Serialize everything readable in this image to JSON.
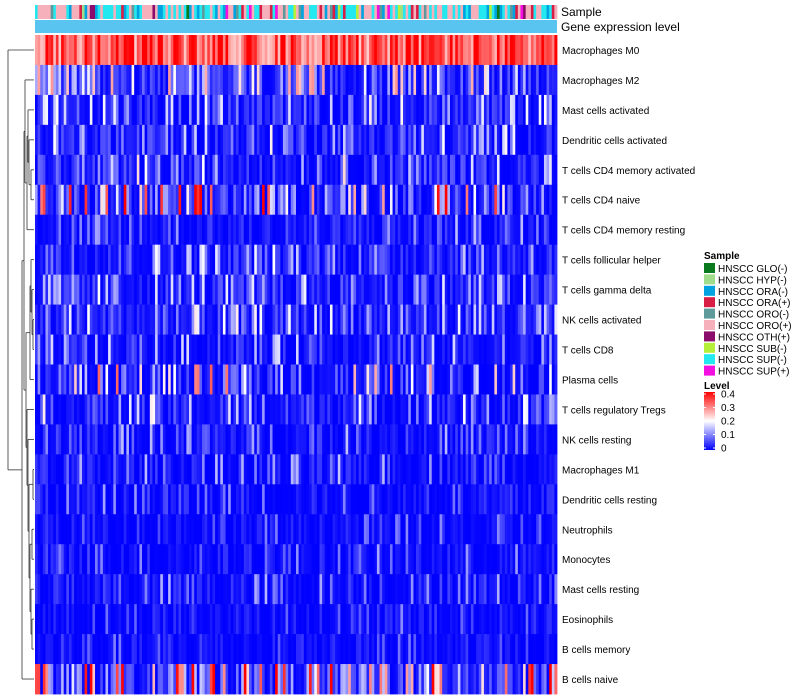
{
  "chart_data": {
    "type": "heatmap",
    "title": "",
    "annotation_tracks": [
      "Sample",
      "Gene expression level"
    ],
    "rows": [
      "Macrophages M0",
      "Macrophages M2",
      "Mast cells activated",
      "Dendritic cells activated",
      "T cells CD4 memory activated",
      "T cells CD4 naive",
      "T cells CD4 memory resting",
      "T cells follicular helper",
      "T cells gamma delta",
      "NK cells activated",
      "T cells CD8",
      "Plasma cells",
      "T cells regulatory  Tregs",
      "NK cells resting",
      "Macrophages M1",
      "Dendritic cells resting",
      "Neutrophils",
      "Monocytes",
      "Mast cells resting",
      "Eosinophils",
      "B cells memory",
      "B cells naive"
    ],
    "row_mean_levels": [
      0.33,
      0.12,
      0.08,
      0.08,
      0.07,
      0.06,
      0.05,
      0.1,
      0.08,
      0.08,
      0.05,
      0.03,
      0.04,
      0.03,
      0.02,
      0.02,
      0.01,
      0.015,
      0.02,
      0.01,
      0.01,
      0.12
    ],
    "row_max_levels": [
      0.4,
      0.26,
      0.2,
      0.2,
      0.22,
      0.4,
      0.14,
      0.2,
      0.2,
      0.2,
      0.16,
      0.3,
      0.2,
      0.14,
      0.14,
      0.12,
      0.1,
      0.12,
      0.14,
      0.1,
      0.1,
      0.4
    ],
    "num_samples": 200,
    "legend_sample": {
      "title": "Sample",
      "entries": [
        {
          "label": "HNSCC GLO(-)",
          "color": "#0a7a1e"
        },
        {
          "label": "HNSCC HYP(-)",
          "color": "#9fdc8c"
        },
        {
          "label": "HNSCC ORA(-)",
          "color": "#00a3df"
        },
        {
          "label": "HNSCC ORA(+)",
          "color": "#d81e45"
        },
        {
          "label": "HNSCC ORO(-)",
          "color": "#5f9a9a"
        },
        {
          "label": "HNSCC ORO(+)",
          "color": "#f5b0bb"
        },
        {
          "label": "HNSCC OTH(+)",
          "color": "#8a0d6c"
        },
        {
          "label": "HNSCC SUB(-)",
          "color": "#b5ef3a"
        },
        {
          "label": "HNSCC SUP(-)",
          "color": "#23e8ef"
        },
        {
          "label": "HNSCC SUP(+)",
          "color": "#f20fe0"
        }
      ]
    },
    "sample_order_weights": [
      0.02,
      0.03,
      0.14,
      0.05,
      0.06,
      0.33,
      0.02,
      0.02,
      0.31,
      0.02
    ],
    "gene_expression_track_color": "#59c4f0",
    "legend_level": {
      "title": "Level",
      "ticks": [
        0.4,
        0.3,
        0.2,
        0.1,
        0
      ],
      "tick_labels": [
        "0.4",
        "0.3",
        "0.2",
        "0.1",
        "0"
      ],
      "range": [
        0,
        0.4
      ],
      "colors": [
        "#0000ff",
        "#ffffff",
        "#ff0000"
      ]
    }
  }
}
